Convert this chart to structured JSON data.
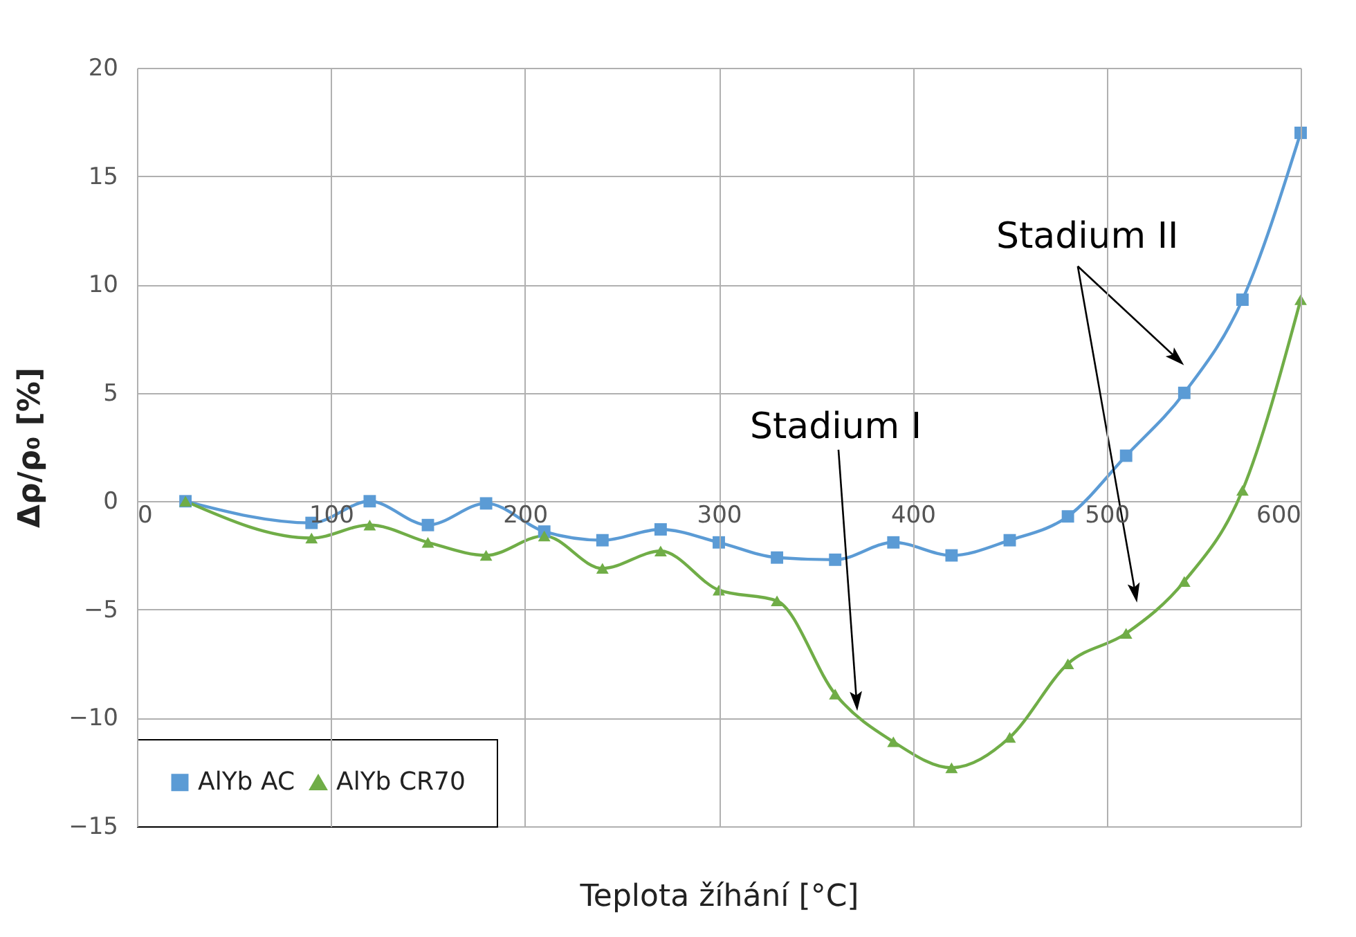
{
  "chart_data": {
    "type": "line",
    "xlabel": "Teplota žíhání [°C]",
    "ylabel": "Δρ/ρ₀ [%]",
    "x": [
      25,
      90,
      120,
      150,
      180,
      210,
      240,
      270,
      300,
      330,
      360,
      390,
      420,
      450,
      480,
      510,
      540,
      570,
      600
    ],
    "series": [
      {
        "name": "AlYb AC",
        "color": "#5b9bd5",
        "marker": "square",
        "values": [
          0,
          -1.0,
          0,
          -1.1,
          -0.1,
          -1.4,
          -1.8,
          -1.3,
          -1.9,
          -2.6,
          -2.7,
          -1.9,
          -2.5,
          -1.8,
          -0.7,
          2.1,
          5.0,
          9.3,
          17.0
        ]
      },
      {
        "name": "AlYb CR70",
        "color": "#70ad47",
        "marker": "triangle",
        "values": [
          0,
          -1.7,
          -1.1,
          -1.9,
          -2.5,
          -1.6,
          -3.1,
          -2.3,
          -4.1,
          -4.6,
          -8.9,
          -11.1,
          -12.3,
          -10.9,
          -7.5,
          -6.1,
          -3.7,
          0.5,
          9.3
        ]
      }
    ],
    "xlim": [
      0,
      600
    ],
    "xticks": [
      0,
      100,
      200,
      300,
      400,
      500,
      600
    ],
    "ylim": [
      -15,
      20
    ],
    "yticks": [
      -15,
      -10,
      -5,
      0,
      5,
      10,
      15,
      20
    ],
    "grid": true,
    "legend": "bottom left",
    "line_style": "solid",
    "annotations": [
      {
        "text": "Stadium I",
        "x": 371,
        "y": -9.2
      },
      {
        "text": "Stadium II",
        "x": 536,
        "y": 6.6
      }
    ]
  }
}
